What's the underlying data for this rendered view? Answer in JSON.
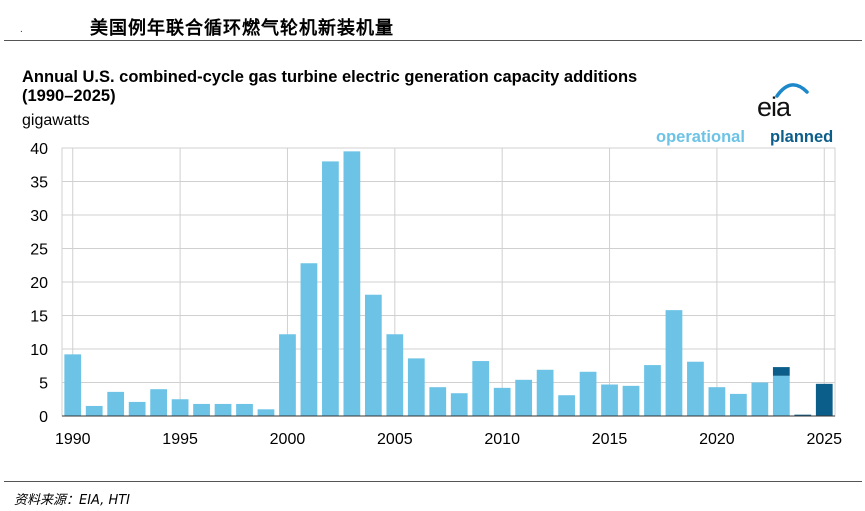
{
  "report_title": "美国例年联合循环燃气轮机新装机量",
  "header_mark": ".",
  "logo_text": "eia",
  "source_text": "资料来源：EIA, HTI",
  "chart_data": {
    "type": "bar",
    "title": "Annual U.S. combined-cycle gas turbine electric generation capacity additions",
    "subtitle": "(1990–2025)",
    "ylabel": "gigawatts",
    "xlabel": "",
    "ylim": [
      0,
      40
    ],
    "yticks": [
      0,
      5,
      10,
      15,
      20,
      25,
      30,
      35,
      40
    ],
    "xticks": [
      1990,
      1995,
      2000,
      2005,
      2010,
      2015,
      2020,
      2025
    ],
    "grid": true,
    "stacked": true,
    "legend_position": "top-right",
    "x": [
      1990,
      1991,
      1992,
      1993,
      1994,
      1995,
      1996,
      1997,
      1998,
      1999,
      2000,
      2001,
      2002,
      2003,
      2004,
      2005,
      2006,
      2007,
      2008,
      2009,
      2010,
      2011,
      2012,
      2013,
      2014,
      2015,
      2016,
      2017,
      2018,
      2019,
      2020,
      2021,
      2022,
      2023,
      2024,
      2025
    ],
    "series": [
      {
        "name": "operational",
        "color": "#6cc3e6",
        "values": [
          9.2,
          1.5,
          3.6,
          2.1,
          4.0,
          2.5,
          1.8,
          1.8,
          1.8,
          1.0,
          12.2,
          22.8,
          38.0,
          39.5,
          18.1,
          12.2,
          8.6,
          4.3,
          3.4,
          8.2,
          4.2,
          5.4,
          6.9,
          3.1,
          6.6,
          4.7,
          4.5,
          7.6,
          15.8,
          8.1,
          4.3,
          3.3,
          5.0,
          6.0,
          0,
          0
        ]
      },
      {
        "name": "planned",
        "color": "#0c5e8a",
        "values": [
          0,
          0,
          0,
          0,
          0,
          0,
          0,
          0,
          0,
          0,
          0,
          0,
          0,
          0,
          0,
          0,
          0,
          0,
          0,
          0,
          0,
          0,
          0,
          0,
          0,
          0,
          0,
          0,
          0,
          0,
          0,
          0,
          0,
          1.3,
          0.2,
          4.8
        ]
      }
    ]
  }
}
